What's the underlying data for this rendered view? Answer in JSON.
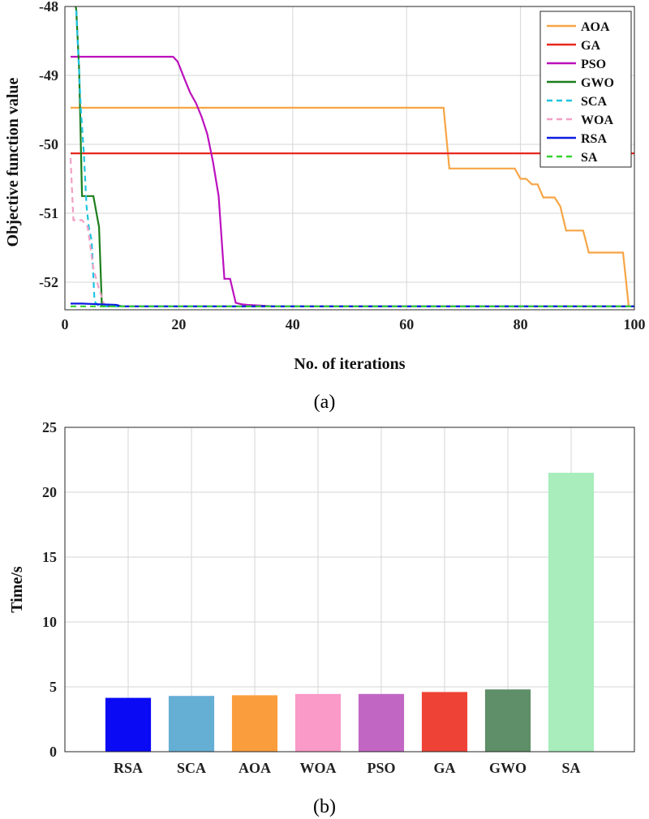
{
  "panels": {
    "a_label": "(a)",
    "b_label": "(b)"
  },
  "chart_data": [
    {
      "type": "line",
      "xlabel": "No. of iterations",
      "ylabel": "Objective function value",
      "xlim": [
        0,
        100
      ],
      "ylim": [
        -52.4,
        -48
      ],
      "xticks": [
        "0",
        "20",
        "40",
        "60",
        "80",
        "100"
      ],
      "xtick_values": [
        0,
        20,
        40,
        60,
        80,
        100
      ],
      "yticks": [
        "-48",
        "-49",
        "-50",
        "-51",
        "-52"
      ],
      "ytick_values": [
        -48,
        -49,
        -50,
        -51,
        -52
      ],
      "grid": true,
      "legend_position": "top-right",
      "series": [
        {
          "name": "AOA",
          "color": "#F7A545",
          "dash": "solid",
          "x": [
            1,
            66.5,
            67.5,
            79,
            80,
            81,
            82,
            83,
            84,
            86,
            87,
            88,
            89,
            91,
            92,
            98,
            99,
            100
          ],
          "y": [
            -49.47,
            -49.47,
            -50.35,
            -50.35,
            -50.5,
            -50.5,
            -50.58,
            -50.58,
            -50.77,
            -50.77,
            -50.9,
            -51.25,
            -51.25,
            -51.25,
            -51.57,
            -51.57,
            -52.35,
            -52.35
          ]
        },
        {
          "name": "GA",
          "color": "#E8271F",
          "dash": "solid",
          "x": [
            1,
            100
          ],
          "y": [
            -50.13,
            -50.13
          ]
        },
        {
          "name": "PSO",
          "color": "#BB10BE",
          "dash": "solid",
          "x": [
            1,
            19,
            19.8,
            21,
            22,
            23,
            24,
            25,
            26,
            27,
            28,
            29,
            30,
            31,
            32,
            37,
            100
          ],
          "y": [
            -48.73,
            -48.73,
            -48.8,
            -49.05,
            -49.25,
            -49.4,
            -49.6,
            -49.85,
            -50.25,
            -50.75,
            -51.95,
            -51.95,
            -52.3,
            -52.32,
            -52.33,
            -52.35,
            -52.35
          ]
        },
        {
          "name": "GWO",
          "color": "#1C7E1C",
          "dash": "solid",
          "x": [
            1,
            2,
            2.5,
            3,
            5,
            6,
            6.5,
            7,
            100
          ],
          "y": [
            -47.6,
            -48.05,
            -48.9,
            -50.75,
            -50.75,
            -51.2,
            -52.35,
            -52.35,
            -52.35
          ]
        },
        {
          "name": "SCA",
          "color": "#1FC3E0",
          "dash": "dashed",
          "x": [
            1,
            2,
            2.8,
            3.3,
            3.8,
            4.2,
            4.7,
            5.2,
            6,
            100
          ],
          "y": [
            -47.5,
            -48.05,
            -49.5,
            -50.1,
            -50.9,
            -51.2,
            -51.4,
            -52.28,
            -52.35,
            -52.35
          ]
        },
        {
          "name": "WOA",
          "color": "#F2A0C5",
          "dash": "dashed",
          "x": [
            1,
            1.5,
            2,
            3,
            4,
            5,
            5.5,
            6,
            7,
            100
          ],
          "y": [
            -50.2,
            -51.1,
            -51.1,
            -51.1,
            -51.2,
            -51.8,
            -51.95,
            -52.1,
            -52.35,
            -52.35
          ]
        },
        {
          "name": "RSA",
          "color": "#0B1BE0",
          "dash": "solid",
          "x": [
            1,
            3,
            9,
            10,
            100
          ],
          "y": [
            -52.31,
            -52.31,
            -52.33,
            -52.35,
            -52.35
          ]
        },
        {
          "name": "SA",
          "color": "#33D133",
          "dash": "dashed",
          "x": [
            1,
            100
          ],
          "y": [
            -52.35,
            -52.35
          ]
        }
      ]
    },
    {
      "type": "bar",
      "categories": [
        "RSA",
        "SCA",
        "AOA",
        "WOA",
        "PSO",
        "GA",
        "GWO",
        "SA"
      ],
      "values": [
        4.15,
        4.3,
        4.35,
        4.45,
        4.45,
        4.6,
        4.8,
        21.5
      ],
      "colors": [
        "#0A0AF5",
        "#66AFD4",
        "#FA9E3D",
        "#FA9AC8",
        "#C266C4",
        "#EF4236",
        "#5E8F68",
        "#A8EDBB"
      ],
      "xlabel": "",
      "ylabel": "Time/s",
      "ylim": [
        0,
        25
      ],
      "yticks": [
        "0",
        "5",
        "10",
        "15",
        "20",
        "25"
      ],
      "ytick_values": [
        0,
        5,
        10,
        15,
        20,
        25
      ],
      "grid": true
    }
  ]
}
